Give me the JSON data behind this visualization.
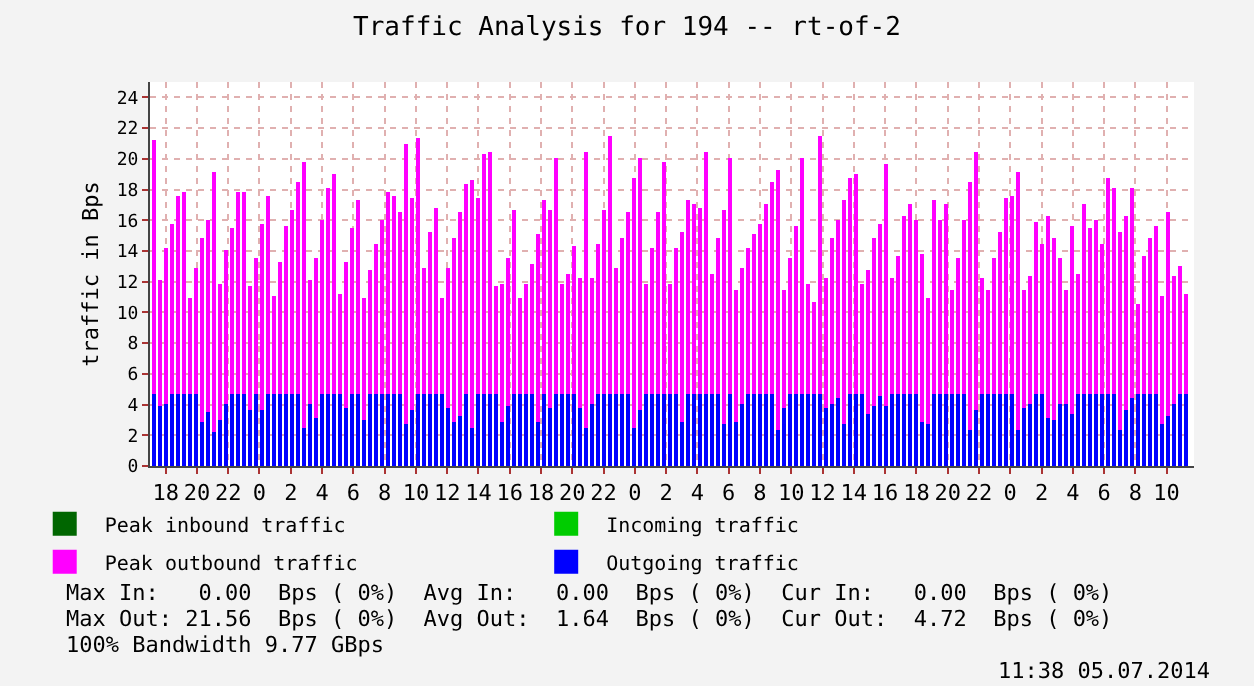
{
  "chart_data": {
    "type": "bar",
    "title": "Traffic Analysis for 194 -- rt-of-2",
    "ylabel": "traffic in Bps",
    "x": [
      "2014-07-02T17:18",
      "2014-07-02T17:41",
      "2014-07-02T18:04",
      "2014-07-02T18:27",
      "2014-07-02T18:50",
      "2014-07-02T19:13",
      "2014-07-02T19:36",
      "2014-07-02T19:59",
      "2014-07-02T20:22",
      "2014-07-02T20:45",
      "2014-07-02T21:08",
      "2014-07-02T21:31",
      "2014-07-02T21:54",
      "2014-07-02T22:17",
      "2014-07-02T22:40",
      "2014-07-02T23:03",
      "2014-07-02T23:26",
      "2014-07-02T23:49",
      "2014-07-03T00:12",
      "2014-07-03T00:35",
      "2014-07-03T00:58",
      "2014-07-03T01:21",
      "2014-07-03T01:44",
      "2014-07-03T02:07",
      "2014-07-03T02:30",
      "2014-07-03T02:53",
      "2014-07-03T03:16",
      "2014-07-03T03:39",
      "2014-07-03T04:02",
      "2014-07-03T04:25",
      "2014-07-03T04:48",
      "2014-07-03T05:11",
      "2014-07-03T05:34",
      "2014-07-03T05:57",
      "2014-07-03T06:20",
      "2014-07-03T06:43",
      "2014-07-03T07:06",
      "2014-07-03T07:29",
      "2014-07-03T07:52",
      "2014-07-03T08:15",
      "2014-07-03T08:38",
      "2014-07-03T09:01",
      "2014-07-03T09:24",
      "2014-07-03T09:47",
      "2014-07-03T10:10",
      "2014-07-03T10:33",
      "2014-07-03T10:56",
      "2014-07-03T11:19",
      "2014-07-03T11:42",
      "2014-07-03T12:05",
      "2014-07-03T12:28",
      "2014-07-03T12:51",
      "2014-07-03T13:14",
      "2014-07-03T13:37",
      "2014-07-03T14:00",
      "2014-07-03T14:23",
      "2014-07-03T14:46",
      "2014-07-03T15:09",
      "2014-07-03T15:32",
      "2014-07-03T15:55",
      "2014-07-03T16:18",
      "2014-07-03T16:41",
      "2014-07-03T17:04",
      "2014-07-03T17:27",
      "2014-07-03T17:50",
      "2014-07-03T18:13",
      "2014-07-03T18:36",
      "2014-07-03T18:59",
      "2014-07-03T19:22",
      "2014-07-03T19:45",
      "2014-07-03T20:08",
      "2014-07-03T20:31",
      "2014-07-03T20:54",
      "2014-07-03T21:17",
      "2014-07-03T21:40",
      "2014-07-03T22:03",
      "2014-07-03T22:26",
      "2014-07-03T22:49",
      "2014-07-03T23:12",
      "2014-07-03T23:35",
      "2014-07-03T23:58",
      "2014-07-04T00:21",
      "2014-07-04T00:44",
      "2014-07-04T01:07",
      "2014-07-04T01:30",
      "2014-07-04T01:53",
      "2014-07-04T02:16",
      "2014-07-04T02:39",
      "2014-07-04T03:02",
      "2014-07-04T03:25",
      "2014-07-04T03:48",
      "2014-07-04T04:11",
      "2014-07-04T04:34",
      "2014-07-04T04:57",
      "2014-07-04T05:20",
      "2014-07-04T05:43",
      "2014-07-04T06:06",
      "2014-07-04T06:29",
      "2014-07-04T06:52",
      "2014-07-04T07:15",
      "2014-07-04T07:38",
      "2014-07-04T08:01",
      "2014-07-04T08:24",
      "2014-07-04T08:47",
      "2014-07-04T09:10",
      "2014-07-04T09:33",
      "2014-07-04T09:56",
      "2014-07-04T10:19",
      "2014-07-04T10:42",
      "2014-07-04T11:05",
      "2014-07-04T11:28",
      "2014-07-04T11:51",
      "2014-07-04T12:14",
      "2014-07-04T12:37",
      "2014-07-04T13:00",
      "2014-07-04T13:23",
      "2014-07-04T13:46",
      "2014-07-04T14:09",
      "2014-07-04T14:32",
      "2014-07-04T14:55",
      "2014-07-04T15:18",
      "2014-07-04T15:41",
      "2014-07-04T16:04",
      "2014-07-04T16:27",
      "2014-07-04T16:50",
      "2014-07-04T17:13",
      "2014-07-04T17:36",
      "2014-07-04T17:59",
      "2014-07-04T18:22",
      "2014-07-04T18:45",
      "2014-07-04T19:08",
      "2014-07-04T19:31",
      "2014-07-04T19:54",
      "2014-07-04T20:17",
      "2014-07-04T20:40",
      "2014-07-04T21:03",
      "2014-07-04T21:26",
      "2014-07-04T21:49",
      "2014-07-04T22:12",
      "2014-07-04T22:35",
      "2014-07-04T22:58",
      "2014-07-04T23:21",
      "2014-07-04T23:44",
      "2014-07-05T00:07",
      "2014-07-05T00:30",
      "2014-07-05T00:53",
      "2014-07-05T01:16",
      "2014-07-05T01:39",
      "2014-07-05T02:02",
      "2014-07-05T02:25",
      "2014-07-05T02:48",
      "2014-07-05T03:11",
      "2014-07-05T03:34",
      "2014-07-05T03:57",
      "2014-07-05T04:20",
      "2014-07-05T04:43",
      "2014-07-05T05:06",
      "2014-07-05T05:29",
      "2014-07-05T05:52",
      "2014-07-05T06:15",
      "2014-07-05T06:38",
      "2014-07-05T07:01",
      "2014-07-05T07:24",
      "2014-07-05T07:47",
      "2014-07-05T08:10",
      "2014-07-05T08:33",
      "2014-07-05T08:56",
      "2014-07-05T09:19",
      "2014-07-05T09:42",
      "2014-07-05T10:05",
      "2014-07-05T10:28",
      "2014-07-05T10:51",
      "2014-07-05T11:14"
    ],
    "series": [
      {
        "name": "Peak inbound traffic",
        "color": "#006600",
        "values": [
          0,
          0,
          0,
          0,
          0,
          0,
          0,
          0,
          0,
          0,
          0,
          0,
          0,
          0,
          0,
          0,
          0,
          0,
          0,
          0,
          0,
          0,
          0,
          0,
          0,
          0,
          0,
          0,
          0,
          0,
          0,
          0,
          0,
          0,
          0,
          0,
          0,
          0,
          0,
          0,
          0,
          0,
          0,
          0,
          0,
          0,
          0,
          0,
          0,
          0,
          0,
          0,
          0,
          0,
          0,
          0,
          0,
          0,
          0,
          0,
          0,
          0,
          0,
          0,
          0,
          0,
          0,
          0,
          0,
          0,
          0,
          0,
          0,
          0,
          0,
          0,
          0,
          0,
          0,
          0,
          0,
          0,
          0,
          0,
          0,
          0,
          0,
          0,
          0,
          0,
          0,
          0,
          0,
          0,
          0,
          0,
          0,
          0,
          0,
          0,
          0,
          0,
          0,
          0,
          0,
          0,
          0,
          0,
          0,
          0,
          0,
          0,
          0,
          0,
          0,
          0,
          0,
          0,
          0,
          0,
          0,
          0,
          0,
          0,
          0,
          0,
          0,
          0,
          0,
          0,
          0,
          0,
          0,
          0,
          0,
          0,
          0,
          0,
          0,
          0,
          0,
          0,
          0,
          0,
          0,
          0,
          0,
          0,
          0,
          0,
          0,
          0,
          0,
          0,
          0,
          0,
          0,
          0,
          0,
          0,
          0,
          0,
          0,
          0,
          0,
          0,
          0,
          0,
          0,
          0,
          0,
          0,
          0
        ]
      },
      {
        "name": "Incoming traffic",
        "color": "#00cc00",
        "values": [
          0,
          0,
          0,
          0,
          0,
          0,
          0,
          0,
          0,
          0,
          0,
          0,
          0,
          0,
          0,
          0,
          0,
          0,
          0,
          0,
          0,
          0,
          0,
          0,
          0,
          0,
          0,
          0,
          0,
          0,
          0,
          0,
          0,
          0,
          0,
          0,
          0,
          0,
          0,
          0,
          0,
          0,
          0,
          0,
          0,
          0,
          0,
          0,
          0,
          0,
          0,
          0,
          0,
          0,
          0,
          0,
          0,
          0,
          0,
          0,
          0,
          0,
          0,
          0,
          0,
          0,
          0,
          0,
          0,
          0,
          0,
          0,
          0,
          0,
          0,
          0,
          0,
          0,
          0,
          0,
          0,
          0,
          0,
          0,
          0,
          0,
          0,
          0,
          0,
          0,
          0,
          0,
          0,
          0,
          0,
          0,
          0,
          0,
          0,
          0,
          0,
          0,
          0,
          0,
          0,
          0,
          0,
          0,
          0,
          0,
          0,
          0,
          0,
          0,
          0,
          0,
          0,
          0,
          0,
          0,
          0,
          0,
          0,
          0,
          0,
          0,
          0,
          0,
          0,
          0,
          0,
          0,
          0,
          0,
          0,
          0,
          0,
          0,
          0,
          0,
          0,
          0,
          0,
          0,
          0,
          0,
          0,
          0,
          0,
          0,
          0,
          0,
          0,
          0,
          0,
          0,
          0,
          0,
          0,
          0,
          0,
          0,
          0,
          0,
          0,
          0,
          0,
          0,
          0,
          0,
          0,
          0,
          0
        ]
      },
      {
        "name": "Peak outbound traffic",
        "color": "#ff00ff",
        "values": [
          21.2,
          12.1,
          14.2,
          15.7,
          17.6,
          17.9,
          10.9,
          12.9,
          14.8,
          16.0,
          19.2,
          11.8,
          14.0,
          15.5,
          17.8,
          17.9,
          11.7,
          13.5,
          15.8,
          17.6,
          11.1,
          13.3,
          15.6,
          16.7,
          18.5,
          19.8,
          12.1,
          13.6,
          16.0,
          18.1,
          19.0,
          11.2,
          13.3,
          15.5,
          17.3,
          11.0,
          12.8,
          14.5,
          16.0,
          17.8,
          17.6,
          16.5,
          21.0,
          17.5,
          21.3,
          12.9,
          15.2,
          16.8,
          11.0,
          12.9,
          14.8,
          16.6,
          18.4,
          18.6,
          17.5,
          20.3,
          20.5,
          11.7,
          11.8,
          13.5,
          16.7,
          10.9,
          11.9,
          13.1,
          15.1,
          17.3,
          16.7,
          20.1,
          11.9,
          12.5,
          14.3,
          12.3,
          20.5,
          12.3,
          14.5,
          16.7,
          21.5,
          12.9,
          14.9,
          16.5,
          18.8,
          20.1,
          11.9,
          14.2,
          16.5,
          19.8,
          11.9,
          14.2,
          15.3,
          17.3,
          17.1,
          16.8,
          20.5,
          12.5,
          14.8,
          16.7,
          20.1,
          11.5,
          12.9,
          14.2,
          15.1,
          15.7,
          17.1,
          18.5,
          19.3,
          11.5,
          13.6,
          15.6,
          20.1,
          11.9,
          10.7,
          21.5,
          12.3,
          14.8,
          16.0,
          17.3,
          18.7,
          19.0,
          11.9,
          12.8,
          14.8,
          15.7,
          19.6,
          12.3,
          13.7,
          16.3,
          17.1,
          16.0,
          13.8,
          11.0,
          17.3,
          16.0,
          17.1,
          11.5,
          13.5,
          16.0,
          18.5,
          20.4,
          12.3,
          11.5,
          13.6,
          15.2,
          17.4,
          17.6,
          19.2,
          11.5,
          12.4,
          15.9,
          14.4,
          16.3,
          14.8,
          13.5,
          11.5,
          15.6,
          12.5,
          17.1,
          15.5,
          16.0,
          14.4,
          18.7,
          18.1,
          15.2,
          16.3,
          18.1,
          10.5,
          13.7,
          14.9,
          15.6,
          11.1,
          16.5,
          12.4,
          13.0,
          11.2
        ]
      },
      {
        "name": "Outgoing traffic",
        "color": "#0000ff",
        "values": [
          4.7,
          3.9,
          4.0,
          4.7,
          4.7,
          4.7,
          4.7,
          4.7,
          2.9,
          3.5,
          2.2,
          3.0,
          4.0,
          4.7,
          4.7,
          4.7,
          3.6,
          4.7,
          3.7,
          4.7,
          4.7,
          4.7,
          4.7,
          4.7,
          4.7,
          2.5,
          4.0,
          3.1,
          4.7,
          4.7,
          4.7,
          4.7,
          3.8,
          4.7,
          4.7,
          3.0,
          4.7,
          4.7,
          4.7,
          4.7,
          4.7,
          4.7,
          2.7,
          3.6,
          4.7,
          4.7,
          4.7,
          4.7,
          4.7,
          3.8,
          2.9,
          3.3,
          4.7,
          2.5,
          4.7,
          4.7,
          4.7,
          4.7,
          2.9,
          3.9,
          4.7,
          4.7,
          4.7,
          4.7,
          2.9,
          4.7,
          3.8,
          4.7,
          4.7,
          4.7,
          4.7,
          3.8,
          2.5,
          4.0,
          4.7,
          4.7,
          4.7,
          4.7,
          4.7,
          4.7,
          2.5,
          3.6,
          4.7,
          4.7,
          4.7,
          4.7,
          4.7,
          4.7,
          2.9,
          4.7,
          4.7,
          4.7,
          4.7,
          4.7,
          4.7,
          2.7,
          4.7,
          2.9,
          4.0,
          4.7,
          4.7,
          4.7,
          4.7,
          4.7,
          2.4,
          3.8,
          4.7,
          4.7,
          4.7,
          4.7,
          4.7,
          4.7,
          3.8,
          4.0,
          4.4,
          2.8,
          4.7,
          4.7,
          4.7,
          3.4,
          3.9,
          4.6,
          3.9,
          4.7,
          4.7,
          4.7,
          4.7,
          4.7,
          2.9,
          2.7,
          4.7,
          4.7,
          4.7,
          4.7,
          4.7,
          4.7,
          2.4,
          3.6,
          4.7,
          4.7,
          4.7,
          4.7,
          4.7,
          4.7,
          2.4,
          3.8,
          4.0,
          4.7,
          4.7,
          3.1,
          3.0,
          4.0,
          4.0,
          3.4,
          4.7,
          4.7,
          4.7,
          4.7,
          4.7,
          4.7,
          4.7,
          2.4,
          3.7,
          4.4,
          4.7,
          4.7,
          4.7,
          4.7,
          2.7,
          3.3,
          4.1,
          4.7,
          4.7
        ]
      }
    ],
    "xlim": [
      "2014-07-02T17:00",
      "2014-07-05T11:45"
    ],
    "xticks": [
      {
        "value": "2014-07-02T18:00",
        "label": "18"
      },
      {
        "value": "2014-07-02T20:00",
        "label": "20"
      },
      {
        "value": "2014-07-02T22:00",
        "label": "22"
      },
      {
        "value": "2014-07-03T00:00",
        "label": "0"
      },
      {
        "value": "2014-07-03T02:00",
        "label": "2"
      },
      {
        "value": "2014-07-03T04:00",
        "label": "4"
      },
      {
        "value": "2014-07-03T06:00",
        "label": "6"
      },
      {
        "value": "2014-07-03T08:00",
        "label": "8"
      },
      {
        "value": "2014-07-03T10:00",
        "label": "10"
      },
      {
        "value": "2014-07-03T12:00",
        "label": "12"
      },
      {
        "value": "2014-07-03T14:00",
        "label": "14"
      },
      {
        "value": "2014-07-03T16:00",
        "label": "16"
      },
      {
        "value": "2014-07-03T18:00",
        "label": "18"
      },
      {
        "value": "2014-07-03T20:00",
        "label": "20"
      },
      {
        "value": "2014-07-03T22:00",
        "label": "22"
      },
      {
        "value": "2014-07-04T00:00",
        "label": "0"
      },
      {
        "value": "2014-07-04T02:00",
        "label": "2"
      },
      {
        "value": "2014-07-04T04:00",
        "label": "4"
      },
      {
        "value": "2014-07-04T06:00",
        "label": "6"
      },
      {
        "value": "2014-07-04T08:00",
        "label": "8"
      },
      {
        "value": "2014-07-04T10:00",
        "label": "10"
      },
      {
        "value": "2014-07-04T12:00",
        "label": "12"
      },
      {
        "value": "2014-07-04T14:00",
        "label": "14"
      },
      {
        "value": "2014-07-04T16:00",
        "label": "16"
      },
      {
        "value": "2014-07-04T18:00",
        "label": "18"
      },
      {
        "value": "2014-07-04T20:00",
        "label": "20"
      },
      {
        "value": "2014-07-04T22:00",
        "label": "22"
      },
      {
        "value": "2014-07-05T00:00",
        "label": "0"
      },
      {
        "value": "2014-07-05T02:00",
        "label": "2"
      },
      {
        "value": "2014-07-05T04:00",
        "label": "4"
      },
      {
        "value": "2014-07-05T06:00",
        "label": "6"
      },
      {
        "value": "2014-07-05T08:00",
        "label": "8"
      },
      {
        "value": "2014-07-05T10:00",
        "label": "10"
      }
    ],
    "ylim": [
      0,
      25
    ],
    "yticks": [
      0,
      2,
      4,
      6,
      8,
      10,
      12,
      14,
      16,
      18,
      20,
      22,
      24
    ],
    "grid": true,
    "legend": "bottom",
    "annotations": [
      "Max In:   0.00  Bps ( 0%)  Avg In:   0.00  Bps ( 0%)  Cur In:   0.00  Bps ( 0%)",
      "Max Out: 21.56  Bps ( 0%)  Avg Out:  1.64  Bps ( 0%)  Cur Out:  4.72  Bps ( 0%)",
      "100% Bandwidth 9.77 GBps",
      "11:38 05.07.2014"
    ]
  }
}
